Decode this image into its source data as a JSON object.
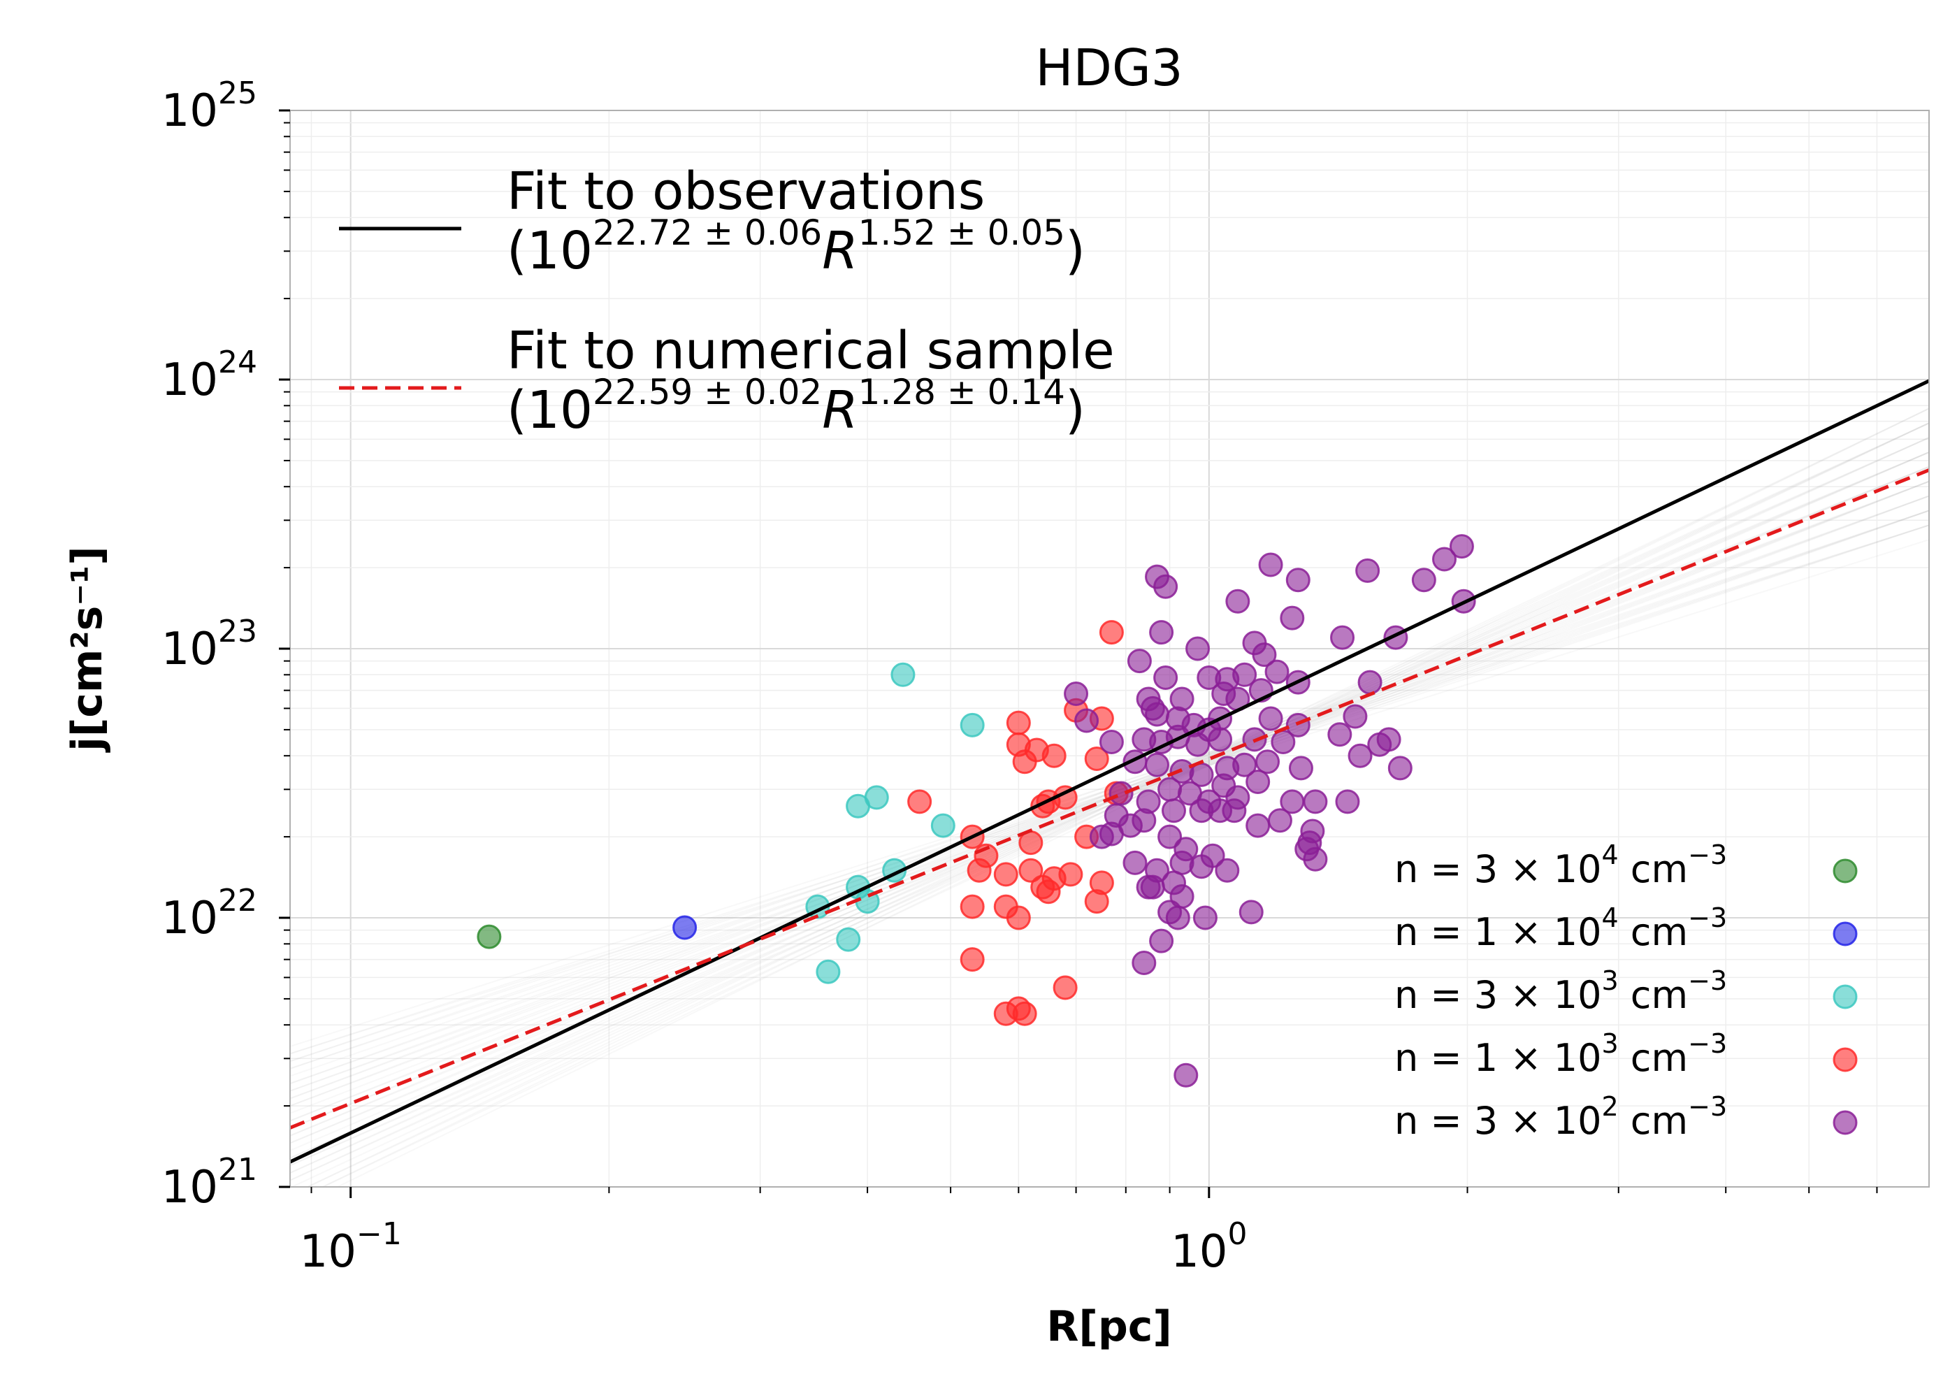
{
  "chart_data": {
    "type": "scatter",
    "title": "HDG3",
    "xlabel": "R[pc]",
    "ylabel": "j[cm²s⁻¹]",
    "xscale": "log",
    "yscale": "log",
    "xlim": [
      0.085,
      6.9
    ],
    "ylim": [
      1e+21,
      1e+25
    ],
    "grid": true,
    "x_tick_labels": [
      {
        "value": 0.1,
        "base": "10",
        "exp": "−1"
      },
      {
        "value": 1,
        "base": "10",
        "exp": "0"
      }
    ],
    "y_tick_labels": [
      {
        "value": 1e+21,
        "base": "10",
        "exp": "21"
      },
      {
        "value": 1e+22,
        "base": "10",
        "exp": "22"
      },
      {
        "value": 1e+23,
        "base": "10",
        "exp": "23"
      },
      {
        "value": 1e+24,
        "base": "10",
        "exp": "24"
      },
      {
        "value": 1e+25,
        "base": "10",
        "exp": "25"
      }
    ],
    "fits": [
      {
        "name": "Fit to observations",
        "formula": {
          "base": "10",
          "exp1": "22.72 ± 0.06",
          "var": "R",
          "exp2": "1.52 ± 0.05"
        },
        "log_amplitude": 22.72,
        "slope": 1.52,
        "color": "#000000",
        "style": "solid"
      },
      {
        "name": "Fit to numerical sample",
        "formula": {
          "base": "10",
          "exp1": "22.59 ± 0.02",
          "var": "R",
          "exp2": "1.28 ± 0.14"
        },
        "log_amplitude": 22.59,
        "slope": 1.28,
        "color": "#e31a1c",
        "style": "dashed"
      }
    ],
    "legend_position": "upper-left",
    "series_legend_position": "lower-right",
    "series": [
      {
        "name": "n = 3×10⁴ cm⁻³",
        "label": {
          "prefix": "n  = 3 × 10",
          "exp": "4",
          "unit": " cm",
          "unit_exp": "−3"
        },
        "color": "#2e8b2e",
        "points": [
          [
            0.145,
            8.5e+21
          ]
        ]
      },
      {
        "name": "n = 1×10⁴ cm⁻³",
        "label": {
          "prefix": "n  = 1 × 10",
          "exp": "4",
          "unit": " cm",
          "unit_exp": "−3"
        },
        "color": "#2424e8",
        "points": [
          [
            0.245,
            9.2e+21
          ]
        ]
      },
      {
        "name": "n = 3×10³ cm⁻³",
        "label": {
          "prefix": "n  = 3 × 10",
          "exp": "3",
          "unit": " cm",
          "unit_exp": "−3"
        },
        "color": "#3cc8c0",
        "points": [
          [
            0.44,
            8e+22
          ],
          [
            0.53,
            5.2e+22
          ],
          [
            0.39,
            2.6e+22
          ],
          [
            0.41,
            2.8e+22
          ],
          [
            0.49,
            2.2e+22
          ],
          [
            0.43,
            1.5e+22
          ],
          [
            0.35,
            1.1e+22
          ],
          [
            0.39,
            1.3e+22
          ],
          [
            0.4,
            1.15e+22
          ],
          [
            0.38,
            8.3e+21
          ],
          [
            0.36,
            6.3e+21
          ]
        ]
      },
      {
        "name": "n = 1×10³ cm⁻³",
        "label": {
          "prefix": "n  = 1 × 10",
          "exp": "3",
          "unit": " cm",
          "unit_exp": "−3"
        },
        "color": "#ff2a2a",
        "points": [
          [
            0.77,
            1.15e+23
          ],
          [
            0.7,
            5.9e+22
          ],
          [
            0.75,
            5.5e+22
          ],
          [
            0.6,
            5.3e+22
          ],
          [
            0.6,
            4.4e+22
          ],
          [
            0.63,
            4.2e+22
          ],
          [
            0.66,
            4e+22
          ],
          [
            0.61,
            3.8e+22
          ],
          [
            0.74,
            3.9e+22
          ],
          [
            0.46,
            2.7e+22
          ],
          [
            0.65,
            2.7e+22
          ],
          [
            0.68,
            2.8e+22
          ],
          [
            0.64,
            2.6e+22
          ],
          [
            0.78,
            2.9e+22
          ],
          [
            0.72,
            2e+22
          ],
          [
            0.53,
            2e+22
          ],
          [
            0.62,
            1.9e+22
          ],
          [
            0.55,
            1.7e+22
          ],
          [
            0.54,
            1.5e+22
          ],
          [
            0.58,
            1.45e+22
          ],
          [
            0.62,
            1.5e+22
          ],
          [
            0.66,
            1.4e+22
          ],
          [
            0.64,
            1.3e+22
          ],
          [
            0.69,
            1.45e+22
          ],
          [
            0.65,
            1.25e+22
          ],
          [
            0.75,
            1.35e+22
          ],
          [
            0.53,
            1.1e+22
          ],
          [
            0.58,
            1.1e+22
          ],
          [
            0.6,
            1e+22
          ],
          [
            0.74,
            1.15e+22
          ],
          [
            0.53,
            7e+21
          ],
          [
            0.68,
            5.5e+21
          ],
          [
            0.58,
            4.4e+21
          ],
          [
            0.61,
            4.4e+21
          ],
          [
            0.6,
            4.6e+21
          ]
        ]
      },
      {
        "name": "n = 3×10² cm⁻³",
        "label": {
          "prefix": "n  = 3 × 10",
          "exp": "2",
          "unit": " cm",
          "unit_exp": "−3"
        },
        "color": "#8b1f96",
        "points": [
          [
            0.87,
            1.85e+23
          ],
          [
            0.89,
            1.7e+23
          ],
          [
            1.08,
            1.5e+23
          ],
          [
            1.18,
            2.05e+23
          ],
          [
            1.53,
            1.95e+23
          ],
          [
            1.27,
            1.8e+23
          ],
          [
            1.78,
            1.8e+23
          ],
          [
            1.88,
            2.15e+23
          ],
          [
            1.97,
            2.4e+23
          ],
          [
            1.98,
            1.5e+23
          ],
          [
            0.88,
            1.15e+23
          ],
          [
            0.97,
            1e+23
          ],
          [
            1.13,
            1.05e+23
          ],
          [
            1.25,
            1.3e+23
          ],
          [
            1.43,
            1.1e+23
          ],
          [
            1.65,
            1.1e+23
          ],
          [
            0.83,
            9e+22
          ],
          [
            0.89,
            7.8e+22
          ],
          [
            1.0,
            7.8e+22
          ],
          [
            1.05,
            7.7e+22
          ],
          [
            1.1,
            8e+22
          ],
          [
            1.16,
            9.5e+22
          ],
          [
            1.2,
            8.2e+22
          ],
          [
            1.27,
            7.5e+22
          ],
          [
            0.7,
            6.8e+22
          ],
          [
            0.85,
            6.5e+22
          ],
          [
            0.93,
            6.5e+22
          ],
          [
            0.86,
            6e+22
          ],
          [
            1.04,
            6.8e+22
          ],
          [
            1.08,
            6.5e+22
          ],
          [
            1.15,
            7e+22
          ],
          [
            1.54,
            7.5e+22
          ],
          [
            0.72,
            5.4e+22
          ],
          [
            0.87,
            5.7e+22
          ],
          [
            0.92,
            5.5e+22
          ],
          [
            0.96,
            5.2e+22
          ],
          [
            1.0,
            5e+22
          ],
          [
            1.03,
            5.5e+22
          ],
          [
            1.18,
            5.5e+22
          ],
          [
            1.27,
            5.2e+22
          ],
          [
            1.48,
            5.6e+22
          ],
          [
            0.77,
            4.5e+22
          ],
          [
            0.84,
            4.6e+22
          ],
          [
            0.88,
            4.5e+22
          ],
          [
            0.92,
            4.7e+22
          ],
          [
            0.97,
            4.4e+22
          ],
          [
            1.03,
            4.6e+22
          ],
          [
            1.13,
            4.6e+22
          ],
          [
            1.22,
            4.5e+22
          ],
          [
            1.42,
            4.8e+22
          ],
          [
            1.62,
            4.6e+22
          ],
          [
            1.58,
            4.4e+22
          ],
          [
            0.82,
            3.8e+22
          ],
          [
            0.87,
            3.7e+22
          ],
          [
            0.93,
            3.5e+22
          ],
          [
            0.98,
            3.4e+22
          ],
          [
            1.05,
            3.6e+22
          ],
          [
            1.1,
            3.7e+22
          ],
          [
            1.17,
            3.8e+22
          ],
          [
            1.28,
            3.6e+22
          ],
          [
            1.5,
            4e+22
          ],
          [
            1.67,
            3.6e+22
          ],
          [
            0.79,
            2.9e+22
          ],
          [
            0.85,
            2.7e+22
          ],
          [
            0.9,
            3e+22
          ],
          [
            0.95,
            2.9e+22
          ],
          [
            1.0,
            2.7e+22
          ],
          [
            1.04,
            3.1e+22
          ],
          [
            1.08,
            2.8e+22
          ],
          [
            1.14,
            3.2e+22
          ],
          [
            1.25,
            2.7e+22
          ],
          [
            1.33,
            2.7e+22
          ],
          [
            1.45,
            2.7e+22
          ],
          [
            0.78,
            2.4e+22
          ],
          [
            0.84,
            2.3e+22
          ],
          [
            0.91,
            2.5e+22
          ],
          [
            0.98,
            2.5e+22
          ],
          [
            1.03,
            2.5e+22
          ],
          [
            1.07,
            2.5e+22
          ],
          [
            1.14,
            2.2e+22
          ],
          [
            1.21,
            2.3e+22
          ],
          [
            1.32,
            2.1e+22
          ],
          [
            0.75,
            2e+22
          ],
          [
            0.77,
            2.05e+22
          ],
          [
            0.81,
            2.2e+22
          ],
          [
            0.9,
            2e+22
          ],
          [
            0.94,
            1.8e+22
          ],
          [
            1.31,
            1.9e+22
          ],
          [
            0.82,
            1.6e+22
          ],
          [
            0.87,
            1.5e+22
          ],
          [
            0.93,
            1.6e+22
          ],
          [
            0.98,
            1.55e+22
          ],
          [
            1.01,
            1.7e+22
          ],
          [
            1.05,
            1.5e+22
          ],
          [
            1.3,
            1.8e+22
          ],
          [
            1.33,
            1.65e+22
          ],
          [
            0.86,
            1.3e+22
          ],
          [
            0.91,
            1.35e+22
          ],
          [
            0.93,
            1.2e+22
          ],
          [
            0.85,
            1.3e+22
          ],
          [
            0.9,
            1.05e+22
          ],
          [
            0.92,
            1e+22
          ],
          [
            0.99,
            1e+22
          ],
          [
            1.12,
            1.05e+22
          ],
          [
            0.88,
            8.2e+21
          ],
          [
            0.84,
            6.8e+21
          ],
          [
            0.94,
            2.6e+21
          ]
        ]
      }
    ]
  }
}
